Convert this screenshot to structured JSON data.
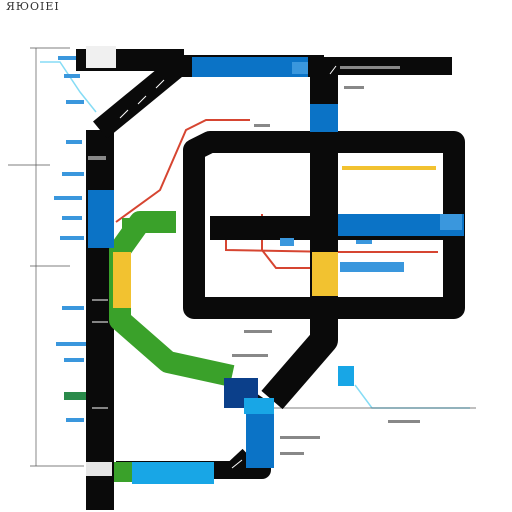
{
  "header": {
    "title": "ЯЮОІЕІ"
  },
  "colors": {
    "track": "#0a0a0a",
    "blue": "#0b73c6",
    "light_blue": "#18a6e6",
    "green": "#3aa12a",
    "yellow": "#f2c230",
    "red": "#d64531",
    "cyan_line": "#86dcf5",
    "label_blue": "#3a97dd",
    "label_gray": "#777777"
  }
}
